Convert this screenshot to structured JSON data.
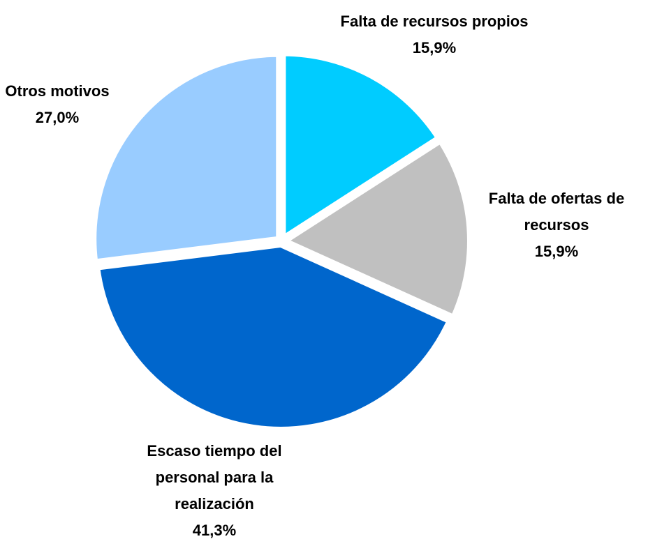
{
  "chart_data": {
    "type": "pie",
    "categories": [
      "Falta de recursos propios",
      "Falta de ofertas de recursos",
      "Escaso tiempo del personal para la realización",
      "Otros motivos"
    ],
    "values": [
      15.9,
      15.9,
      41.3,
      27.0
    ],
    "value_labels": [
      "15,9%",
      "15,9%",
      "41,3%",
      "27,0%"
    ],
    "colors": [
      "#00ccff",
      "#c0c0c0",
      "#0066cc",
      "#99ccff"
    ]
  }
}
